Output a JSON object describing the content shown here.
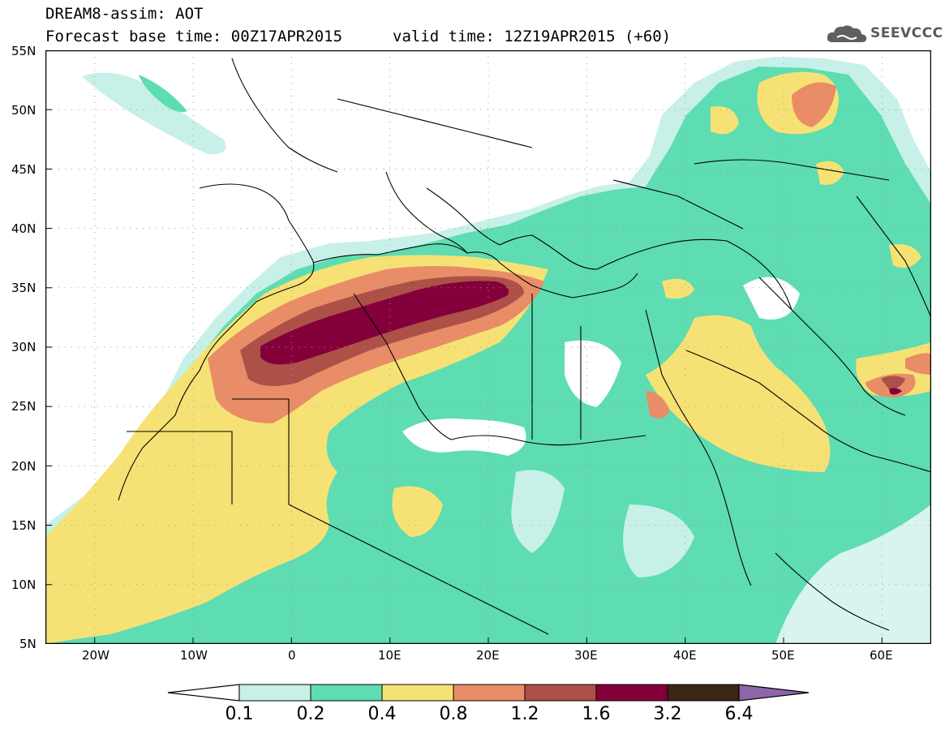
{
  "header": {
    "title_line1": "DREAM8-assim: AOT",
    "title_line2": "Forecast base time: 00Z17APR2015",
    "valid_time": "valid time: 12Z19APR2015 (+60)",
    "brand": "SEEVCCC",
    "brand_icon": "cloud-icon"
  },
  "map": {
    "lon_range": [
      -25,
      65
    ],
    "lat_range": [
      5,
      55
    ],
    "lat_labels": [
      "55N",
      "50N",
      "45N",
      "40N",
      "35N",
      "30N",
      "25N",
      "20N",
      "15N",
      "10N",
      "5N"
    ],
    "lon_labels": [
      "20W",
      "10W",
      "0",
      "10E",
      "20E",
      "30E",
      "40E",
      "50E",
      "60E"
    ],
    "grid": "dotted",
    "colors": {
      "c01": "#c7f0e8",
      "c02": "#5edcb2",
      "c04": "#f6e274",
      "c08": "#e88d68",
      "c12": "#ac5048",
      "c16": "#83003a",
      "c32": "#3c2614",
      "c64": "#8c66a8"
    }
  },
  "colorbar": {
    "ticks": [
      "0.1",
      "0.2",
      "0.4",
      "0.8",
      "1.2",
      "1.6",
      "3.2",
      "6.4"
    ],
    "colors": [
      "#ffffff",
      "#c7f0e8",
      "#5edcb2",
      "#f6e274",
      "#e88d68",
      "#ac5048",
      "#83003a",
      "#3c2614",
      "#8c66a8"
    ]
  }
}
